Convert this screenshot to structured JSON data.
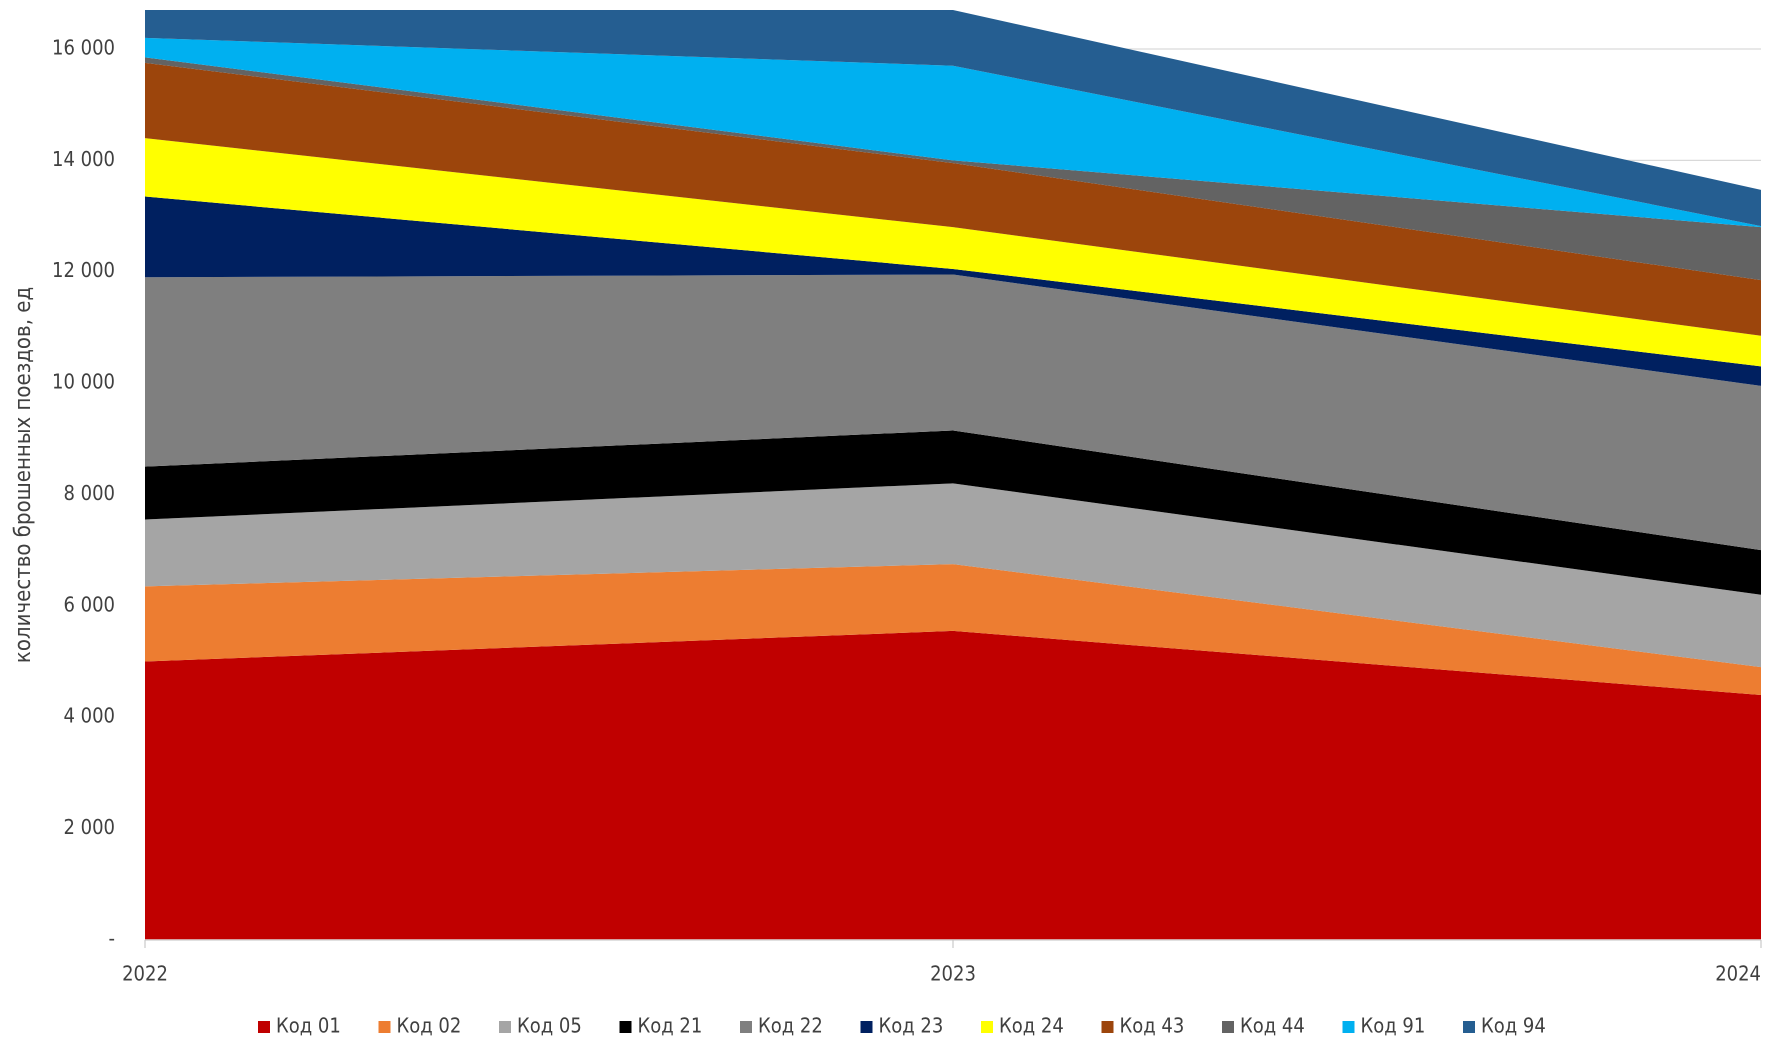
{
  "chart_data": {
    "type": "stacked_area",
    "y_label": "количество брошенных поездов, ед",
    "categories": [
      "2022",
      "2023",
      "2024"
    ],
    "ylim": [
      0,
      16700
    ],
    "yticks": [
      {
        "value": 0,
        "label": "-"
      },
      {
        "value": 2000,
        "label": "2 000"
      },
      {
        "value": 4000,
        "label": "4 000"
      },
      {
        "value": 6000,
        "label": "6 000"
      },
      {
        "value": 8000,
        "label": "8 000"
      },
      {
        "value": 10000,
        "label": "10 000"
      },
      {
        "value": 12000,
        "label": "12 000"
      },
      {
        "value": 14000,
        "label": "14 000"
      },
      {
        "value": 16000,
        "label": "16 000"
      }
    ],
    "grid": true,
    "legend": "bottom",
    "series": [
      {
        "name": "Код 01",
        "color": "#c00000",
        "values": [
          5000,
          5550,
          4400
        ]
      },
      {
        "name": "Код 02",
        "color": "#ed7d31",
        "values": [
          1350,
          1200,
          500
        ]
      },
      {
        "name": "Код 05",
        "color": "#a5a5a5",
        "values": [
          1200,
          1450,
          1300
        ]
      },
      {
        "name": "Код 21",
        "color": "#000000",
        "values": [
          950,
          950,
          800
        ]
      },
      {
        "name": "Код 22",
        "color": "#7f7f7f",
        "values": [
          3400,
          2800,
          2950
        ]
      },
      {
        "name": "Код 23",
        "color": "#002060",
        "values": [
          1450,
          100,
          350
        ]
      },
      {
        "name": "Код 24",
        "color": "#ffff00",
        "values": [
          1050,
          750,
          550
        ]
      },
      {
        "name": "Код 43",
        "color": "#9c450c",
        "values": [
          1350,
          1150,
          1000
        ]
      },
      {
        "name": "Код 44",
        "color": "#636363",
        "values": [
          100,
          50,
          950
        ]
      },
      {
        "name": "Код 91",
        "color": "#00b0f0",
        "values": [
          350,
          1700,
          20
        ]
      },
      {
        "name": "Код 94",
        "color": "#255e91",
        "values": [
          500,
          1000,
          650
        ]
      }
    ]
  }
}
